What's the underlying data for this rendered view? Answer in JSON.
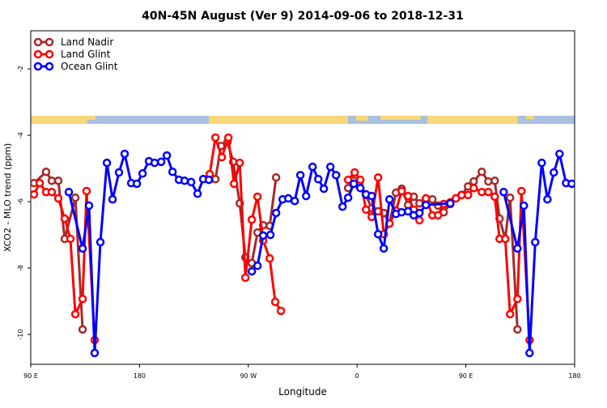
{
  "chart_data": {
    "type": "line",
    "title": "40N-45N August (Ver 9)   2014-09-06 to 2018-12-31",
    "x_label": "Longitude",
    "y_label": "XCO2 - MLO trend (ppm)",
    "xlim": [
      90,
      540
    ],
    "xticks": [
      {
        "value": 90,
        "label": "90 E"
      },
      180,
      {
        "value": 270,
        "label": "90 W"
      },
      {
        "value": 360,
        "label": "0"
      },
      {
        "value": 450,
        "label": "90 E"
      },
      {
        "value": 540,
        "label": "180"
      }
    ],
    "ylim": [
      -10.9,
      -0.85
    ],
    "yticks": [
      -2,
      -4,
      -6,
      -8,
      -10
    ],
    "legend": "top-left",
    "series": [
      {
        "name": "Land Nadir",
        "color": "#a52a2a",
        "x": [
          92.7,
          102.7,
          107.4,
          112.8,
          118.1,
          126.9,
          132.9,
          null,
          238.1,
          242.8,
          247.5,
          252.8,
          257.5,
          262.9,
          267.6,
          272.9,
          277.6,
          282.3,
          287.7,
          293,
          null,
          352.6,
          357.3,
          362,
          367.4,
          372.1,
          377.4,
          382.1,
          386.8,
          392.2,
          396.9,
          402.2,
          406.9,
          411.6,
          417,
          422.3,
          427,
          431.7,
          437.1,
          446.4,
          451.8,
          456.5,
          463.2,
          468.6,
          473.9,
          477.9,
          482.6,
          486.6,
          492.7
        ],
        "values": [
          -5.44,
          -5.1,
          -5.37,
          -5.37,
          -7.12,
          -5.88,
          -9.85,
          null,
          -5.32,
          -5.32,
          -4.32,
          -4.2,
          -4.8,
          -6.05,
          -7.68,
          -7.85,
          -6.93,
          -6.71,
          -6.73,
          -5.27,
          null,
          -5.59,
          -5.37,
          -5.44,
          -5.8,
          -6.2,
          -6.29,
          -6.34,
          -6.66,
          -5.73,
          -5.61,
          -6.1,
          -5.85,
          -6.05,
          -5.93,
          -5.93,
          -6.12,
          -6.32,
          -6.07,
          -5.8,
          -5.54,
          -5.39,
          -5.1,
          -5.39,
          -5.37,
          -6.51,
          -7.12,
          -5.88,
          -9.85
        ]
      },
      {
        "name": "Land Glint",
        "color": "#ff0000",
        "x": [
          92.7,
          97.4,
          102.7,
          107.4,
          112.8,
          118.1,
          122.8,
          126.9,
          132.9,
          136.2,
          142.9,
          null,
          238.1,
          242.8,
          248.1,
          253.5,
          258.2,
          262.9,
          267.6,
          272.9,
          277.6,
          282.3,
          287.7,
          292.3,
          297,
          null,
          352.6,
          358,
          362.7,
          367.4,
          372.1,
          377.4,
          382.1,
          386.8,
          392.2,
          396.9,
          402.2,
          406.9,
          411.6,
          417,
          422.3,
          427,
          431.7,
          437.1,
          441.8,
          446.4,
          451.8,
          456.5,
          463.2,
          468.6,
          473.9,
          477.9,
          482.6,
          486.6,
          492.7,
          496,
          502.7
        ],
        "values": [
          -5.78,
          -5.44,
          -5.71,
          -5.71,
          -5.9,
          -6.51,
          -7.12,
          -9.39,
          -8.93,
          -5.68,
          -10.17,
          null,
          -5.17,
          -4.07,
          -4.66,
          -4.07,
          -5.46,
          -4.83,
          -8.29,
          -6.54,
          -5.85,
          -7.17,
          -7.71,
          -9.02,
          -9.29,
          null,
          -5.34,
          -5.12,
          -5.34,
          -6.24,
          -6.46,
          -5.27,
          -6.98,
          -6.66,
          -6.27,
          -5.68,
          -5.83,
          -6.24,
          -6.56,
          -5.9,
          -6.41,
          -6.41,
          -6.07,
          -6.02,
          -5.9,
          -5.8,
          -5.8,
          -5.59,
          -5.71,
          -5.71,
          -5.85,
          -7.12,
          -7.12,
          -9.39,
          -8.93,
          -5.68,
          -10.17
        ]
      },
      {
        "name": "Ocean Glint",
        "color": "#0000ff",
        "x": [
          121.5,
          132.9,
          138.2,
          142.9,
          147.6,
          153,
          157.7,
          163,
          167.7,
          173.1,
          177.8,
          182.5,
          187.8,
          192.5,
          197.9,
          202.6,
          207.3,
          212.6,
          217.3,
          222.7,
          228,
          232.7,
          237.4,
          null,
          272.9,
          277.6,
          282.3,
          288.3,
          293,
          298.4,
          303.1,
          308.4,
          313.1,
          317.8,
          323.2,
          327.9,
          332.5,
          337.9,
          342.6,
          348,
          352.6,
          357.3,
          362.7,
          367.4,
          372.1,
          377.4,
          382.1,
          386.8,
          392.2,
          396.9,
          402.2,
          406.9,
          411.6,
          417,
          437.1,
          null,
          481.3,
          492.7,
          498,
          502.7,
          507.4,
          512.8,
          517.5,
          522.8,
          527.5,
          532.9,
          537.6
        ],
        "values": [
          -5.71,
          -7.41,
          -6.12,
          -10.56,
          -7.22,
          -4.83,
          -5.93,
          -5.12,
          -4.56,
          -5.44,
          -5.46,
          -5.15,
          -4.78,
          -4.83,
          -4.8,
          -4.61,
          -5.1,
          -5.34,
          -5.37,
          -5.41,
          -5.76,
          -5.32,
          -5.34,
          null,
          -8.1,
          -7.93,
          -7.02,
          -7.0,
          -6.34,
          -5.93,
          -5.9,
          -5.98,
          -5.2,
          -5.83,
          -4.95,
          -5.32,
          -5.61,
          -4.95,
          -5.2,
          -6.15,
          -5.88,
          -5.46,
          -5.59,
          -5.78,
          -5.83,
          -6.98,
          -7.41,
          -5.93,
          -6.37,
          -6.32,
          -6.29,
          -6.41,
          -6.34,
          -6.1,
          -6.05,
          null,
          -5.71,
          -7.41,
          -6.12,
          -10.56,
          -7.22,
          -4.83,
          -5.93,
          -5.12,
          -4.56,
          -5.44,
          -5.46
        ]
      }
    ]
  }
}
